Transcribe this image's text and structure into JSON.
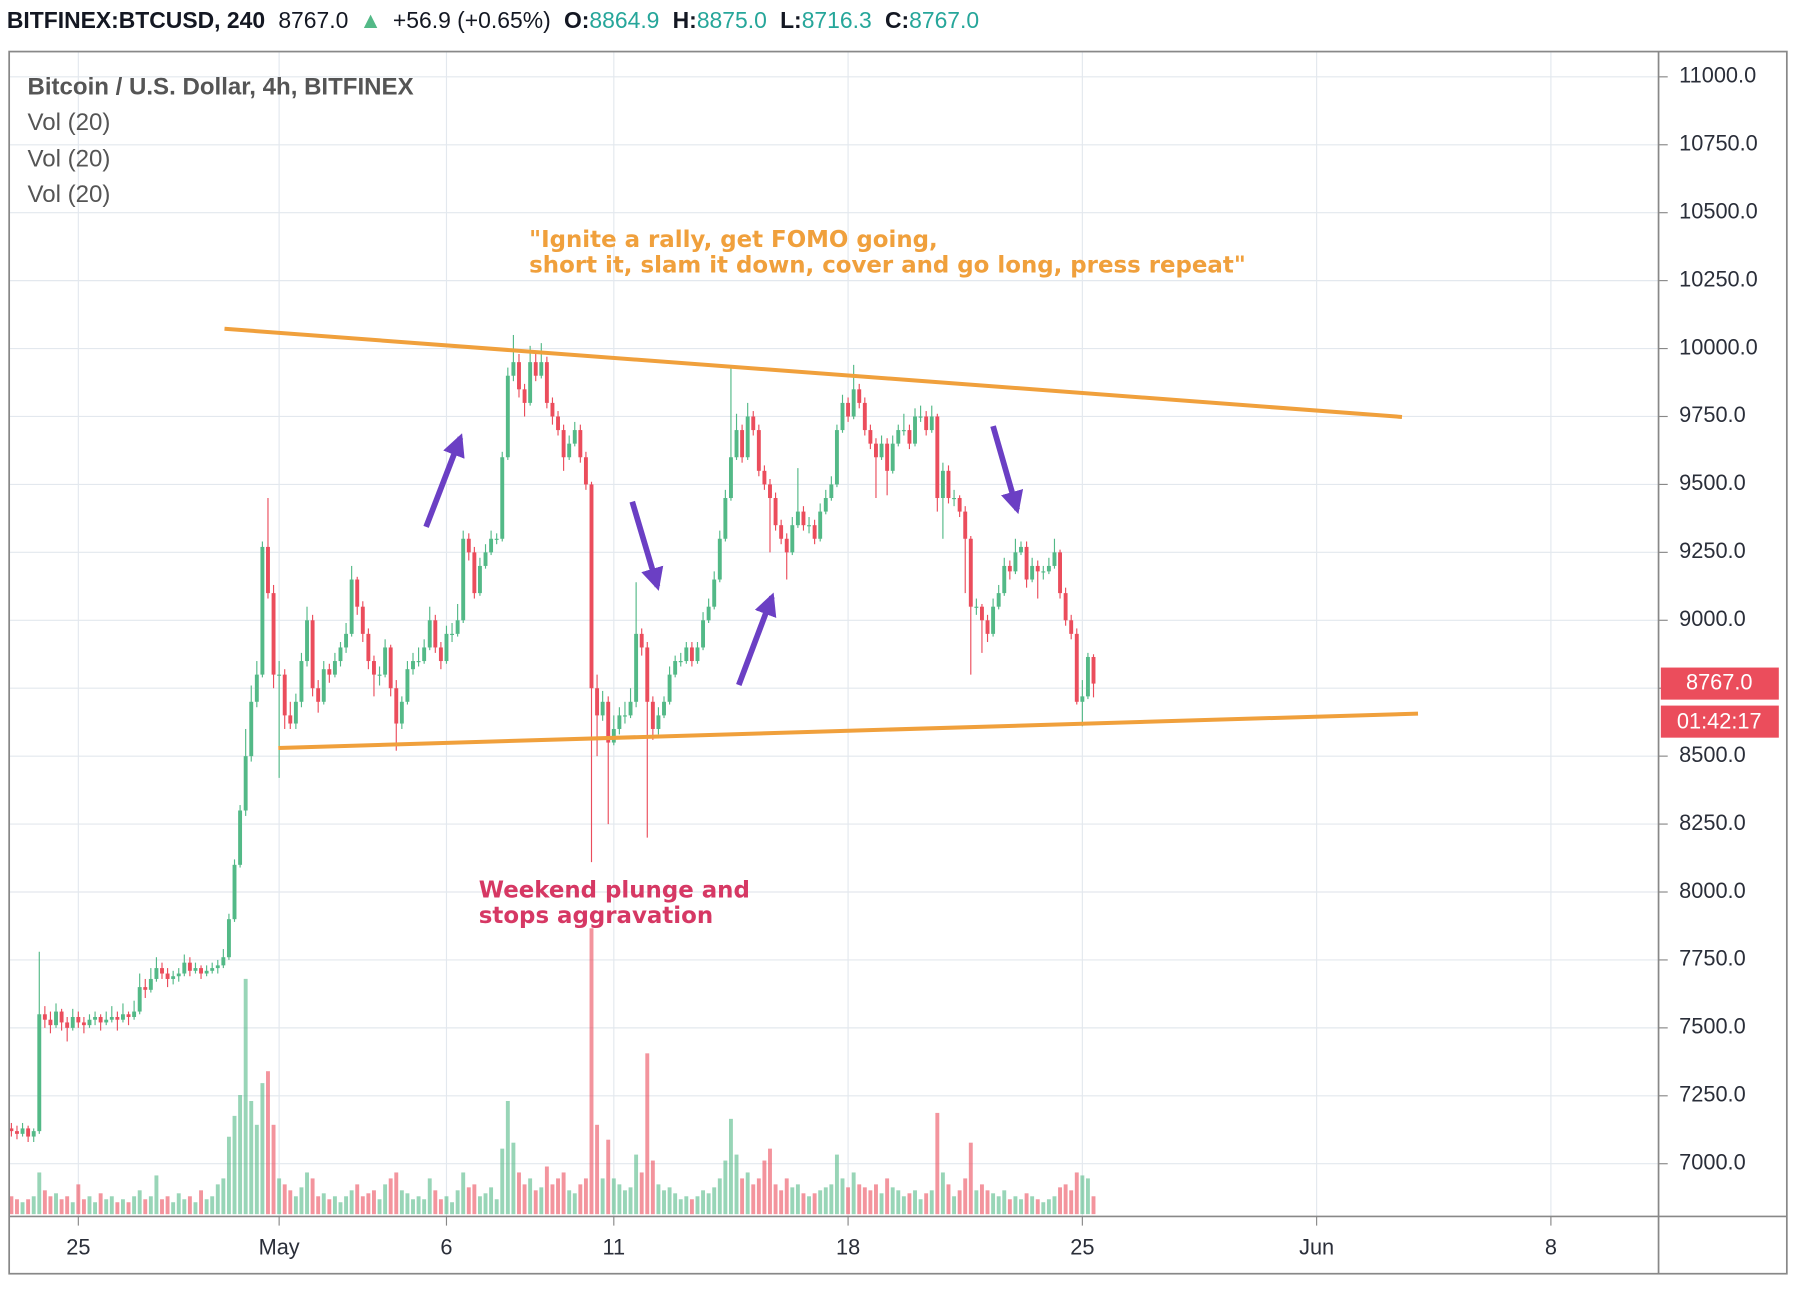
{
  "header": {
    "symbol": "BITFINEX:BTCUSD, 240",
    "last": "8767.0",
    "arrow": "▲",
    "change": "+56.9 (+0.65%)",
    "o_label": "O:",
    "o": "8864.9",
    "h_label": "H:",
    "h": "8875.0",
    "l_label": "L:",
    "l": "8716.3",
    "c_label": "C:",
    "c": "8767.0"
  },
  "chart_data": {
    "type": "candlestick",
    "title": "Bitcoin / U.S. Dollar, 4h, BITFINEX",
    "indicators": [
      "Vol (20)",
      "Vol (20)",
      "Vol (20)"
    ],
    "up_color": "#53b987",
    "down_color": "#eb4d5c",
    "grid": true,
    "ylim": [
      6806,
      11093
    ],
    "yticks": [
      {
        "value": 7000,
        "label": "7000.0"
      },
      {
        "value": 7250,
        "label": "7250.0"
      },
      {
        "value": 7500,
        "label": "7500.0"
      },
      {
        "value": 7750,
        "label": "7750.0"
      },
      {
        "value": 8000,
        "label": "8000.0"
      },
      {
        "value": 8250,
        "label": "8250.0"
      },
      {
        "value": 8500,
        "label": "8500.0"
      },
      {
        "value": 8750,
        "label": "8750.0"
      },
      {
        "value": 9000,
        "label": "9000.0"
      },
      {
        "value": 9250,
        "label": "9250.0"
      },
      {
        "value": 9500,
        "label": "9500.0"
      },
      {
        "value": 9750,
        "label": "9750.0"
      },
      {
        "value": 10000,
        "label": "10000.0"
      },
      {
        "value": 10250,
        "label": "10250.0"
      },
      {
        "value": 10500,
        "label": "10500.0"
      },
      {
        "value": 10750,
        "label": "10750.0"
      },
      {
        "value": 11000,
        "label": "11000.0"
      }
    ],
    "xlim": [
      -0.4,
      295.3
    ],
    "xticks": [
      {
        "value": 12,
        "label": "25"
      },
      {
        "value": 48,
        "label": "May"
      },
      {
        "value": 78,
        "label": "6"
      },
      {
        "value": 108,
        "label": "11"
      },
      {
        "value": 150,
        "label": "18"
      },
      {
        "value": 192,
        "label": "25"
      },
      {
        "value": 234,
        "label": "Jun"
      },
      {
        "value": 276,
        "label": "8"
      }
    ],
    "volume_lim": [
      0,
      100
    ],
    "last_price": {
      "value": 8767,
      "label": "8767.0"
    },
    "countdown": "01:42:17",
    "annotations": [
      [
        "\"Ignite a rally, get FOMO going,",
        "short it, slam it down, cover and go long, press repeat\""
      ],
      [
        "Weekend plunge and",
        "stops aggravation"
      ]
    ],
    "candles": [
      [
        7130,
        7150,
        7100,
        7120,
        6
      ],
      [
        7120,
        7140,
        7090,
        7110,
        5
      ],
      [
        7110,
        7150,
        7100,
        7130,
        4
      ],
      [
        7130,
        7140,
        7080,
        7100,
        5
      ],
      [
        7100,
        7130,
        7080,
        7120,
        6
      ],
      [
        7120,
        7780,
        7110,
        7550,
        14
      ],
      [
        7550,
        7580,
        7500,
        7530,
        8
      ],
      [
        7530,
        7560,
        7480,
        7510,
        6
      ],
      [
        7510,
        7590,
        7500,
        7560,
        7
      ],
      [
        7560,
        7570,
        7490,
        7520,
        5
      ],
      [
        7520,
        7540,
        7450,
        7500,
        6
      ],
      [
        7500,
        7570,
        7490,
        7540,
        4
      ],
      [
        7540,
        7560,
        7500,
        7520,
        10
      ],
      [
        7520,
        7540,
        7480,
        7510,
        5
      ],
      [
        7510,
        7550,
        7500,
        7530,
        6
      ],
      [
        7530,
        7560,
        7510,
        7540,
        4
      ],
      [
        7540,
        7550,
        7490,
        7520,
        7
      ],
      [
        7520,
        7560,
        7510,
        7530,
        5
      ],
      [
        7530,
        7580,
        7520,
        7540,
        6
      ],
      [
        7540,
        7560,
        7490,
        7530,
        4
      ],
      [
        7530,
        7590,
        7520,
        7550,
        5
      ],
      [
        7550,
        7560,
        7510,
        7540,
        4
      ],
      [
        7540,
        7600,
        7530,
        7560,
        6
      ],
      [
        7560,
        7700,
        7550,
        7650,
        8
      ],
      [
        7650,
        7680,
        7610,
        7640,
        5
      ],
      [
        7640,
        7720,
        7630,
        7680,
        6
      ],
      [
        7680,
        7760,
        7670,
        7720,
        13
      ],
      [
        7720,
        7740,
        7680,
        7700,
        5
      ],
      [
        7700,
        7720,
        7650,
        7680,
        6
      ],
      [
        7680,
        7710,
        7660,
        7690,
        4
      ],
      [
        7690,
        7720,
        7670,
        7700,
        7
      ],
      [
        7700,
        7770,
        7690,
        7740,
        5
      ],
      [
        7740,
        7760,
        7690,
        7710,
        6
      ],
      [
        7710,
        7740,
        7700,
        7720,
        4
      ],
      [
        7720,
        7730,
        7680,
        7700,
        8
      ],
      [
        7700,
        7730,
        7690,
        7710,
        5
      ],
      [
        7710,
        7740,
        7700,
        7720,
        6
      ],
      [
        7720,
        7750,
        7700,
        7730,
        10
      ],
      [
        7730,
        7790,
        7720,
        7760,
        12
      ],
      [
        7760,
        7920,
        7750,
        7900,
        26
      ],
      [
        7900,
        8120,
        7890,
        8100,
        33
      ],
      [
        8100,
        8320,
        8090,
        8300,
        40
      ],
      [
        8300,
        8600,
        8280,
        8500,
        79
      ],
      [
        8500,
        8760,
        8480,
        8700,
        38
      ],
      [
        8700,
        8850,
        8680,
        8800,
        30
      ],
      [
        8800,
        9290,
        8790,
        9270,
        44
      ],
      [
        9270,
        9450,
        9080,
        9100,
        48
      ],
      [
        9100,
        9130,
        8750,
        8800,
        30
      ],
      [
        8800,
        8850,
        8420,
        8800,
        12
      ],
      [
        8800,
        8820,
        8600,
        8650,
        10
      ],
      [
        8650,
        8700,
        8600,
        8620,
        8
      ],
      [
        8620,
        8730,
        8600,
        8700,
        6
      ],
      [
        8700,
        8880,
        8680,
        8850,
        9
      ],
      [
        8850,
        9050,
        8830,
        9000,
        14
      ],
      [
        9000,
        9020,
        8720,
        8750,
        12
      ],
      [
        8750,
        8780,
        8660,
        8700,
        6
      ],
      [
        8700,
        8850,
        8690,
        8820,
        7
      ],
      [
        8820,
        8840,
        8770,
        8800,
        5
      ],
      [
        8800,
        8880,
        8790,
        8850,
        6
      ],
      [
        8850,
        8920,
        8830,
        8900,
        4
      ],
      [
        8900,
        8990,
        8880,
        8950,
        6
      ],
      [
        8950,
        9200,
        8940,
        9150,
        8
      ],
      [
        9150,
        9160,
        9020,
        9050,
        10
      ],
      [
        9050,
        9070,
        8920,
        8950,
        6
      ],
      [
        8950,
        8970,
        8820,
        8850,
        7
      ],
      [
        8850,
        8870,
        8720,
        8800,
        8
      ],
      [
        8800,
        8830,
        8760,
        8800,
        5
      ],
      [
        8800,
        8930,
        8790,
        8900,
        10
      ],
      [
        8900,
        8910,
        8720,
        8750,
        12
      ],
      [
        8750,
        8780,
        8520,
        8620,
        14
      ],
      [
        8620,
        8720,
        8600,
        8700,
        8
      ],
      [
        8700,
        8850,
        8690,
        8820,
        7
      ],
      [
        8820,
        8880,
        8800,
        8850,
        5
      ],
      [
        8850,
        8900,
        8830,
        8850,
        6
      ],
      [
        8850,
        8930,
        8840,
        8900,
        5
      ],
      [
        8900,
        9050,
        8890,
        9000,
        12
      ],
      [
        9000,
        9020,
        8880,
        8900,
        8
      ],
      [
        8900,
        8920,
        8820,
        8850,
        5
      ],
      [
        8850,
        8980,
        8840,
        8950,
        6
      ],
      [
        8950,
        8990,
        8920,
        8950,
        4
      ],
      [
        8950,
        9060,
        8940,
        9000,
        8
      ],
      [
        9000,
        9330,
        8990,
        9300,
        14
      ],
      [
        9300,
        9320,
        9220,
        9250,
        9
      ],
      [
        9250,
        9270,
        9080,
        9100,
        10
      ],
      [
        9100,
        9230,
        9090,
        9200,
        6
      ],
      [
        9200,
        9280,
        9190,
        9250,
        7
      ],
      [
        9250,
        9330,
        9240,
        9300,
        9
      ],
      [
        9300,
        9320,
        9280,
        9300,
        5
      ],
      [
        9300,
        9620,
        9290,
        9600,
        22
      ],
      [
        9600,
        9930,
        9590,
        9900,
        38
      ],
      [
        9900,
        10050,
        9880,
        9950,
        24
      ],
      [
        9950,
        9980,
        9820,
        9850,
        14
      ],
      [
        9850,
        9870,
        9750,
        9800,
        10
      ],
      [
        9800,
        10010,
        9790,
        9950,
        12
      ],
      [
        9950,
        9980,
        9880,
        9900,
        8
      ],
      [
        9900,
        10020,
        9890,
        9950,
        9
      ],
      [
        9950,
        9970,
        9780,
        9800,
        16
      ],
      [
        9800,
        9820,
        9720,
        9750,
        10
      ],
      [
        9750,
        9770,
        9680,
        9700,
        12
      ],
      [
        9700,
        9720,
        9550,
        9600,
        14
      ],
      [
        9600,
        9680,
        9590,
        9650,
        8
      ],
      [
        9650,
        9730,
        9640,
        9700,
        7
      ],
      [
        9700,
        9720,
        9580,
        9600,
        10
      ],
      [
        9600,
        9620,
        9480,
        9500,
        12
      ],
      [
        9500,
        9510,
        8110,
        8750,
        96
      ],
      [
        8750,
        8800,
        8500,
        8650,
        30
      ],
      [
        8650,
        8740,
        8630,
        8700,
        12
      ],
      [
        8700,
        8720,
        8250,
        8550,
        25
      ],
      [
        8550,
        8650,
        8540,
        8600,
        12
      ],
      [
        8600,
        8680,
        8580,
        8650,
        10
      ],
      [
        8650,
        8700,
        8620,
        8650,
        8
      ],
      [
        8650,
        8750,
        8640,
        8700,
        9
      ],
      [
        8700,
        9140,
        8680,
        8950,
        20
      ],
      [
        8950,
        8970,
        8870,
        8900,
        14
      ],
      [
        8900,
        8920,
        8200,
        8700,
        54
      ],
      [
        8700,
        8720,
        8560,
        8600,
        18
      ],
      [
        8600,
        8680,
        8580,
        8650,
        10
      ],
      [
        8650,
        8720,
        8640,
        8700,
        8
      ],
      [
        8700,
        8830,
        8690,
        8800,
        9
      ],
      [
        8800,
        8870,
        8790,
        8850,
        7
      ],
      [
        8850,
        8880,
        8830,
        8850,
        5
      ],
      [
        8850,
        8920,
        8840,
        8900,
        6
      ],
      [
        8900,
        8920,
        8830,
        8850,
        5
      ],
      [
        8850,
        8920,
        8840,
        8900,
        6
      ],
      [
        8900,
        9030,
        8890,
        9000,
        8
      ],
      [
        9000,
        9080,
        8990,
        9050,
        7
      ],
      [
        9050,
        9180,
        9040,
        9150,
        9
      ],
      [
        9150,
        9330,
        9140,
        9300,
        12
      ],
      [
        9300,
        9480,
        9290,
        9450,
        18
      ],
      [
        9450,
        9930,
        9440,
        9600,
        32
      ],
      [
        9600,
        9760,
        9590,
        9700,
        20
      ],
      [
        9700,
        9720,
        9580,
        9600,
        12
      ],
      [
        9600,
        9800,
        9590,
        9750,
        14
      ],
      [
        9750,
        9770,
        9680,
        9700,
        10
      ],
      [
        9700,
        9720,
        9530,
        9550,
        12
      ],
      [
        9550,
        9570,
        9480,
        9500,
        18
      ],
      [
        9500,
        9520,
        9250,
        9450,
        22
      ],
      [
        9450,
        9470,
        9330,
        9350,
        10
      ],
      [
        9350,
        9370,
        9280,
        9300,
        8
      ],
      [
        9300,
        9320,
        9150,
        9250,
        12
      ],
      [
        9250,
        9380,
        9240,
        9350,
        9
      ],
      [
        9350,
        9560,
        9340,
        9400,
        10
      ],
      [
        9400,
        9420,
        9330,
        9350,
        7
      ],
      [
        9350,
        9380,
        9320,
        9350,
        6
      ],
      [
        9350,
        9370,
        9280,
        9300,
        7
      ],
      [
        9300,
        9430,
        9290,
        9400,
        8
      ],
      [
        9400,
        9480,
        9390,
        9450,
        9
      ],
      [
        9450,
        9530,
        9440,
        9500,
        10
      ],
      [
        9500,
        9720,
        9490,
        9700,
        20
      ],
      [
        9700,
        9830,
        9690,
        9800,
        12
      ],
      [
        9800,
        9820,
        9730,
        9750,
        9
      ],
      [
        9750,
        9940,
        9740,
        9850,
        14
      ],
      [
        9850,
        9870,
        9780,
        9800,
        10
      ],
      [
        9800,
        9820,
        9680,
        9700,
        9
      ],
      [
        9700,
        9720,
        9630,
        9650,
        8
      ],
      [
        9650,
        9670,
        9450,
        9600,
        10
      ],
      [
        9600,
        9680,
        9590,
        9650,
        7
      ],
      [
        9650,
        9670,
        9460,
        9550,
        12
      ],
      [
        9550,
        9680,
        9540,
        9650,
        9
      ],
      [
        9650,
        9720,
        9640,
        9700,
        8
      ],
      [
        9700,
        9760,
        9680,
        9700,
        6
      ],
      [
        9700,
        9720,
        9630,
        9650,
        7
      ],
      [
        9650,
        9780,
        9640,
        9750,
        8
      ],
      [
        9750,
        9790,
        9730,
        9750,
        5
      ],
      [
        9750,
        9770,
        9680,
        9700,
        7
      ],
      [
        9700,
        9790,
        9690,
        9750,
        8
      ],
      [
        9750,
        9760,
        9400,
        9450,
        34
      ],
      [
        9450,
        9580,
        9300,
        9550,
        14
      ],
      [
        9550,
        9570,
        9430,
        9450,
        10
      ],
      [
        9450,
        9480,
        9420,
        9450,
        6
      ],
      [
        9450,
        9460,
        9380,
        9400,
        8
      ],
      [
        9400,
        9420,
        9100,
        9300,
        12
      ],
      [
        9300,
        9310,
        8800,
        9050,
        24
      ],
      [
        9050,
        9080,
        9020,
        9050,
        8
      ],
      [
        9050,
        9060,
        8880,
        9000,
        10
      ],
      [
        9000,
        9020,
        8920,
        8950,
        8
      ],
      [
        8950,
        9080,
        8940,
        9050,
        7
      ],
      [
        9050,
        9130,
        9040,
        9100,
        6
      ],
      [
        9100,
        9230,
        9090,
        9200,
        8
      ],
      [
        9200,
        9220,
        9150,
        9180,
        5
      ],
      [
        9180,
        9300,
        9170,
        9250,
        6
      ],
      [
        9250,
        9290,
        9240,
        9270,
        5
      ],
      [
        9270,
        9290,
        9120,
        9150,
        7
      ],
      [
        9150,
        9230,
        9140,
        9200,
        6
      ],
      [
        9200,
        9220,
        9080,
        9180,
        5
      ],
      [
        9180,
        9200,
        9150,
        9180,
        4
      ],
      [
        9180,
        9230,
        9170,
        9200,
        5
      ],
      [
        9200,
        9300,
        9190,
        9250,
        6
      ],
      [
        9250,
        9260,
        9080,
        9100,
        9
      ],
      [
        9100,
        9120,
        8980,
        9000,
        10
      ],
      [
        9000,
        9020,
        8930,
        8950,
        8
      ],
      [
        8950,
        8970,
        8690,
        8700,
        14
      ],
      [
        8700,
        8780,
        8610,
        8720,
        13
      ],
      [
        8720,
        8880,
        8710,
        8865,
        12
      ],
      [
        8864.9,
        8875,
        8716.3,
        8767,
        6
      ]
    ]
  }
}
